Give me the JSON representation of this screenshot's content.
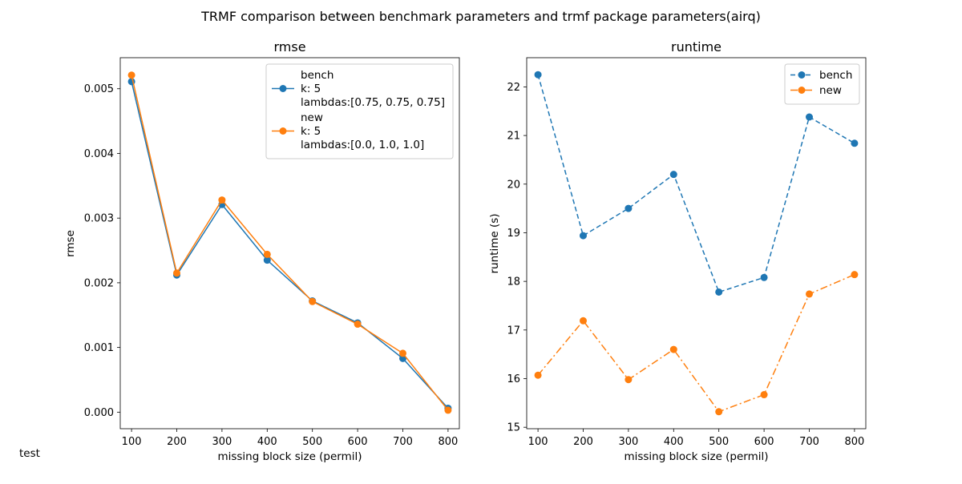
{
  "figure": {
    "suptitle": "TRMF comparison between benchmark parameters and trmf package parameters(airq)",
    "footer_text": "test"
  },
  "chart_data": [
    {
      "type": "line",
      "title": "rmse",
      "xlabel": "missing block size (permil)",
      "ylabel": "rmse",
      "x": [
        100,
        200,
        300,
        400,
        500,
        600,
        700,
        800
      ],
      "xticks": [
        "100",
        "200",
        "300",
        "400",
        "500",
        "600",
        "700",
        "800"
      ],
      "xlim": [
        75,
        825
      ],
      "ylim": [
        -0.000256,
        0.00548
      ],
      "yticks": [
        0.0,
        0.001,
        0.002,
        0.003,
        0.004,
        0.005
      ],
      "ytick_labels": [
        "0.000",
        "0.001",
        "0.002",
        "0.003",
        "0.004",
        "0.005"
      ],
      "grid": false,
      "legend_position": "top-right",
      "series": [
        {
          "name": "bench",
          "legend_lines": [
            "bench",
            "k: 5",
            "lambdas:[0.75, 0.75, 0.75]"
          ],
          "values": [
            0.00511,
            0.00212,
            0.00321,
            0.00235,
            0.00172,
            0.00138,
            0.00083,
            6e-05
          ],
          "color": "#1f77b4",
          "linestyle": "solid",
          "marker": "circle"
        },
        {
          "name": "new",
          "legend_lines": [
            "new",
            "k: 5",
            "lambdas:[0.0, 1.0, 1.0]"
          ],
          "values": [
            0.00521,
            0.00215,
            0.00328,
            0.00244,
            0.00171,
            0.00136,
            0.00091,
            3e-05
          ],
          "color": "#ff7f0e",
          "linestyle": "solid",
          "marker": "circle"
        }
      ]
    },
    {
      "type": "line",
      "title": "runtime",
      "xlabel": "missing block size (permil)",
      "ylabel": "runtime (s)",
      "x": [
        100,
        200,
        300,
        400,
        500,
        600,
        700,
        800
      ],
      "xticks": [
        "100",
        "200",
        "300",
        "400",
        "500",
        "600",
        "700",
        "800"
      ],
      "xlim": [
        75,
        825
      ],
      "ylim": [
        14.97,
        22.6
      ],
      "yticks": [
        15,
        16,
        17,
        18,
        19,
        20,
        21,
        22
      ],
      "ytick_labels": [
        "15",
        "16",
        "17",
        "18",
        "19",
        "20",
        "21",
        "22"
      ],
      "grid": false,
      "legend_position": "top-right",
      "series": [
        {
          "name": "bench",
          "legend_lines": [
            "bench"
          ],
          "values": [
            22.25,
            18.94,
            19.5,
            20.2,
            17.78,
            18.08,
            21.38,
            20.84
          ],
          "color": "#1f77b4",
          "linestyle": "dashed",
          "marker": "circle"
        },
        {
          "name": "new",
          "legend_lines": [
            "new"
          ],
          "values": [
            16.07,
            17.19,
            15.98,
            16.6,
            15.32,
            15.67,
            17.74,
            18.14
          ],
          "color": "#ff7f0e",
          "linestyle": "dashdot",
          "marker": "circle"
        }
      ]
    }
  ]
}
